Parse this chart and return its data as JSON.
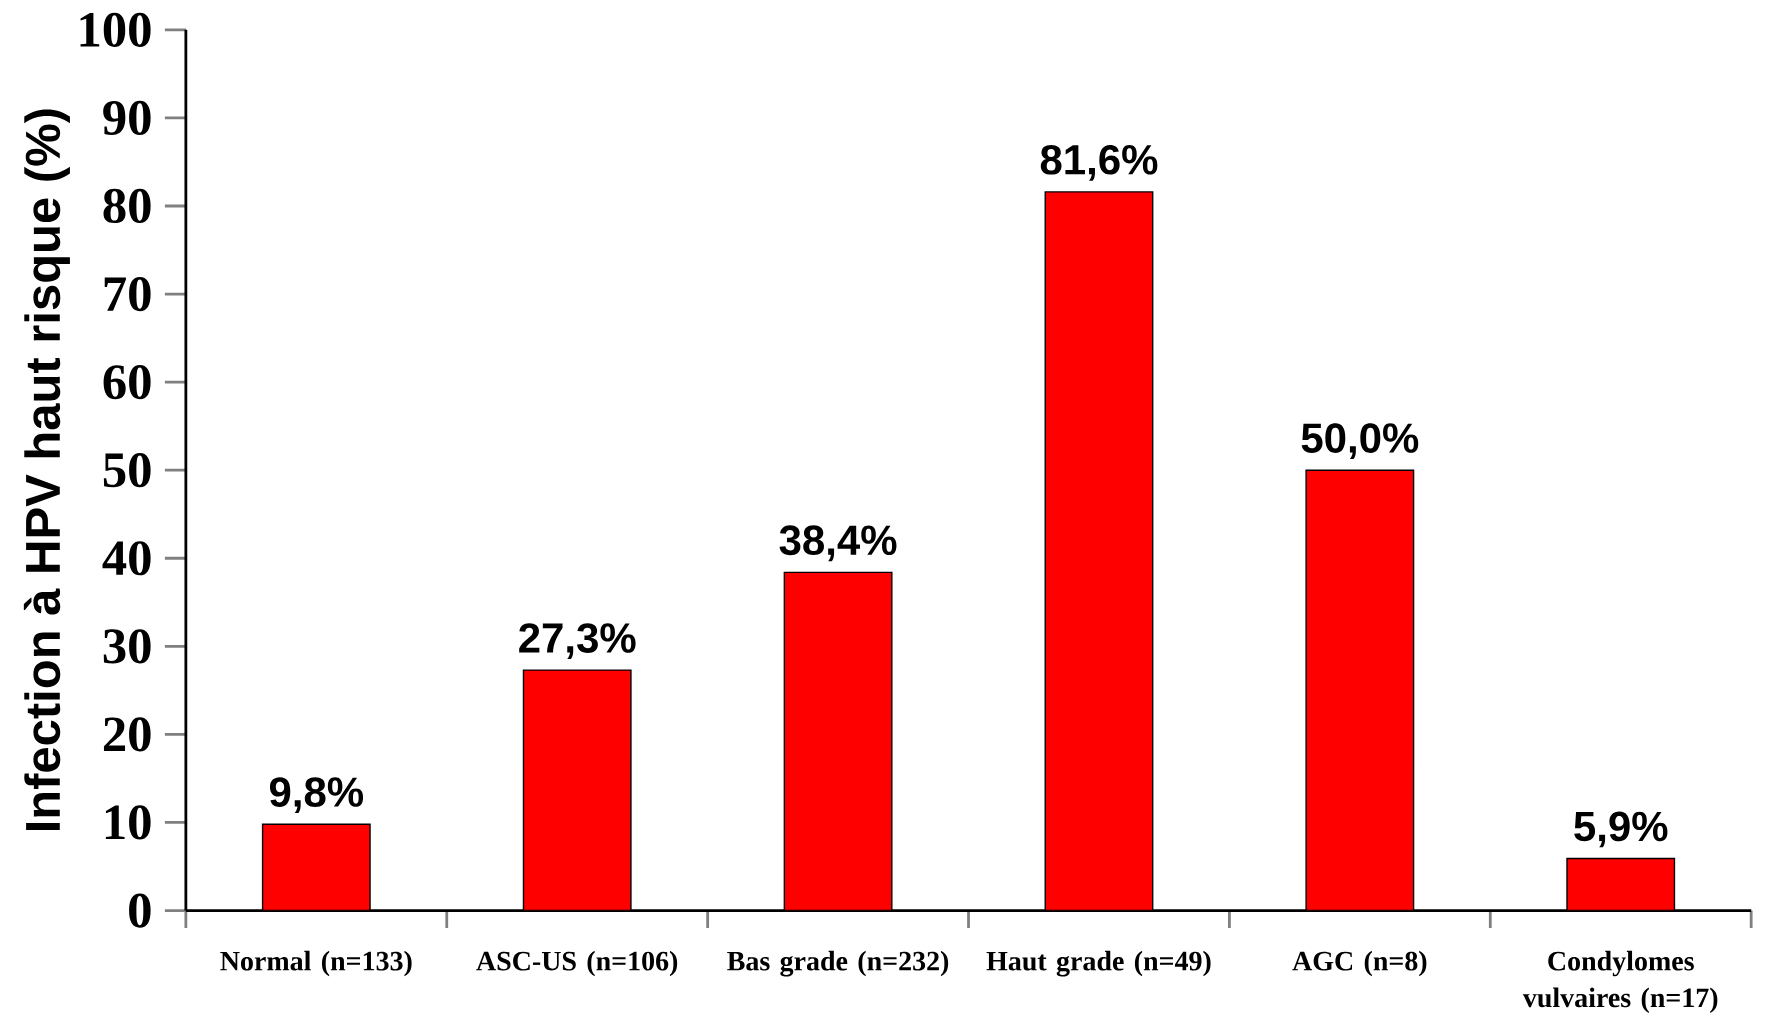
{
  "chart_data": {
    "type": "bar",
    "ylabel": "Infection à HPV haut risque (%)",
    "categories": [
      "Normal (n=133)",
      "ASC-US (n=106)",
      "Bas grade (n=232)",
      "Haut grade (n=49)",
      "AGC (n=8)",
      "Condylomes vulvaires (n=17)"
    ],
    "values": [
      9.8,
      27.3,
      38.4,
      81.6,
      50.0,
      5.9
    ],
    "value_labels": [
      "9,8%",
      "27,3%",
      "38,4%",
      "81,6%",
      "50,0%",
      "5,9%"
    ],
    "color": "#ff0000",
    "ylim": [
      0,
      100
    ],
    "yticks": [
      0,
      10,
      20,
      30,
      40,
      50,
      60,
      70,
      80,
      90,
      100
    ],
    "grid": false,
    "legend": false
  }
}
